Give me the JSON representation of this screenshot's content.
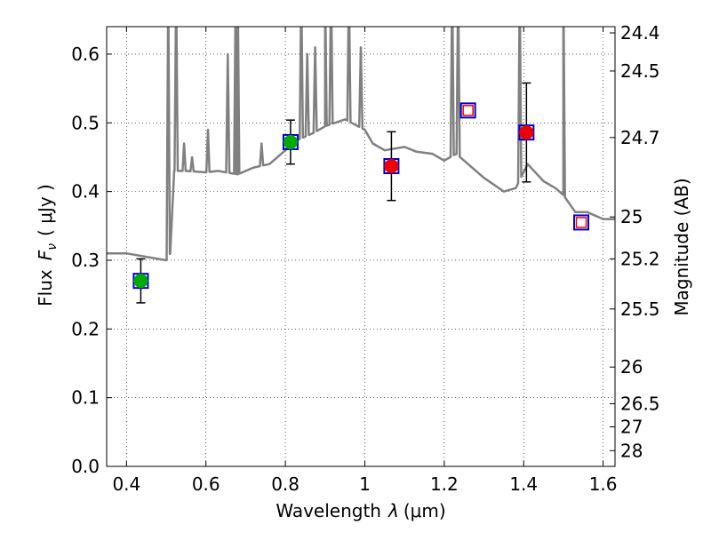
{
  "chart_data": {
    "type": "scatter",
    "title": "",
    "xlabel_text": "Wavelength",
    "xlabel_sym": "λ",
    "xlabel_unit": "(μm)",
    "ylabel_text": "Flux",
    "ylabel_sym_main": "F",
    "ylabel_sym_sub": "ν",
    "ylabel_unit": "( μJy )",
    "y2label": "Magnitude (AB)",
    "xlim": [
      0.35,
      1.63
    ],
    "ylim": [
      0.0,
      0.64
    ],
    "grid": true,
    "xticks": [
      {
        "v": 0.4,
        "label": "0.4"
      },
      {
        "v": 0.6,
        "label": "0.6"
      },
      {
        "v": 0.8,
        "label": "0.8"
      },
      {
        "v": 1.0,
        "label": "1"
      },
      {
        "v": 1.2,
        "label": "1.2"
      },
      {
        "v": 1.4,
        "label": "1.4"
      },
      {
        "v": 1.6,
        "label": "1.6"
      }
    ],
    "yticks": [
      {
        "v": 0.0,
        "label": "0.0"
      },
      {
        "v": 0.1,
        "label": "0.1"
      },
      {
        "v": 0.2,
        "label": "0.2"
      },
      {
        "v": 0.3,
        "label": "0.3"
      },
      {
        "v": 0.4,
        "label": "0.4"
      },
      {
        "v": 0.5,
        "label": "0.5"
      },
      {
        "v": 0.6,
        "label": "0.6"
      }
    ],
    "magnitude_ticks": [
      {
        "mag": 24.4,
        "label": "24.4"
      },
      {
        "mag": 24.5,
        "label": "24.5"
      },
      {
        "mag": 24.7,
        "label": "24.7"
      },
      {
        "mag": 25.0,
        "label": "25"
      },
      {
        "mag": 25.2,
        "label": "25.2"
      },
      {
        "mag": 25.5,
        "label": "25.5"
      },
      {
        "mag": 26.0,
        "label": "26"
      },
      {
        "mag": 26.5,
        "label": "26.5"
      },
      {
        "mag": 27.0,
        "label": "27"
      },
      {
        "mag": 28.0,
        "label": "28"
      }
    ],
    "series": [
      {
        "kind": "spectrum",
        "color": "#808080",
        "baseline": [
          [
            0.35,
            0.31
          ],
          [
            0.4,
            0.31
          ],
          [
            0.45,
            0.305
          ],
          [
            0.5,
            0.3
          ],
          [
            0.51,
            0.31
          ],
          [
            0.52,
            0.43
          ],
          [
            0.55,
            0.43
          ],
          [
            0.6,
            0.428
          ],
          [
            0.63,
            0.43
          ],
          [
            0.68,
            0.425
          ],
          [
            0.72,
            0.435
          ],
          [
            0.76,
            0.44
          ],
          [
            0.79,
            0.455
          ],
          [
            0.83,
            0.475
          ],
          [
            0.87,
            0.485
          ],
          [
            0.9,
            0.495
          ],
          [
            0.95,
            0.505
          ],
          [
            1.0,
            0.49
          ],
          [
            1.02,
            0.47
          ],
          [
            1.05,
            0.46
          ],
          [
            1.1,
            0.465
          ],
          [
            1.13,
            0.458
          ],
          [
            1.17,
            0.455
          ],
          [
            1.2,
            0.445
          ],
          [
            1.23,
            0.455
          ],
          [
            1.25,
            0.445
          ],
          [
            1.3,
            0.42
          ],
          [
            1.35,
            0.4
          ],
          [
            1.38,
            0.405
          ],
          [
            1.41,
            0.44
          ],
          [
            1.45,
            0.415
          ],
          [
            1.48,
            0.405
          ],
          [
            1.5,
            0.395
          ],
          [
            1.53,
            0.37
          ],
          [
            1.56,
            0.37
          ],
          [
            1.6,
            0.36
          ],
          [
            1.63,
            0.36
          ]
        ],
        "emission_lines": [
          [
            0.505,
            0.7
          ],
          [
            0.525,
            0.7
          ],
          [
            0.545,
            0.47
          ],
          [
            0.565,
            0.45
          ],
          [
            0.605,
            0.49
          ],
          [
            0.655,
            0.6
          ],
          [
            0.675,
            0.7
          ],
          [
            0.68,
            0.7
          ],
          [
            0.74,
            0.47
          ],
          [
            0.84,
            0.7
          ],
          [
            0.855,
            0.6
          ],
          [
            0.875,
            0.61
          ],
          [
            0.9,
            0.7
          ],
          [
            0.915,
            0.7
          ],
          [
            0.96,
            0.7
          ],
          [
            0.99,
            0.61
          ],
          [
            1.22,
            0.7
          ],
          [
            1.235,
            0.7
          ],
          [
            1.39,
            0.7
          ],
          [
            1.5,
            0.7
          ]
        ]
      },
      {
        "kind": "photometry",
        "points": [
          {
            "x": 0.436,
            "y": 0.27,
            "err": 0.032,
            "fill": "#00aa00",
            "box": "#0000cc",
            "shape": "circle"
          },
          {
            "x": 0.813,
            "y": 0.472,
            "err": 0.032,
            "fill": "#00aa00",
            "box": "#0000cc",
            "shape": "circle"
          },
          {
            "x": 1.067,
            "y": 0.437,
            "err": 0.05,
            "fill": "#ee0000",
            "box": "#0000cc",
            "shape": "circle"
          },
          {
            "x": 1.407,
            "y": 0.486,
            "err": 0.072,
            "fill": "#ee0000",
            "box": "#0000cc",
            "shape": "circle"
          }
        ]
      },
      {
        "kind": "model",
        "points": [
          {
            "x": 1.26,
            "y": 0.518,
            "box": "#0000cc",
            "inner": "#ee0000"
          },
          {
            "x": 1.545,
            "y": 0.355,
            "box": "#0000cc",
            "inner": "#ee0000"
          }
        ]
      }
    ]
  }
}
